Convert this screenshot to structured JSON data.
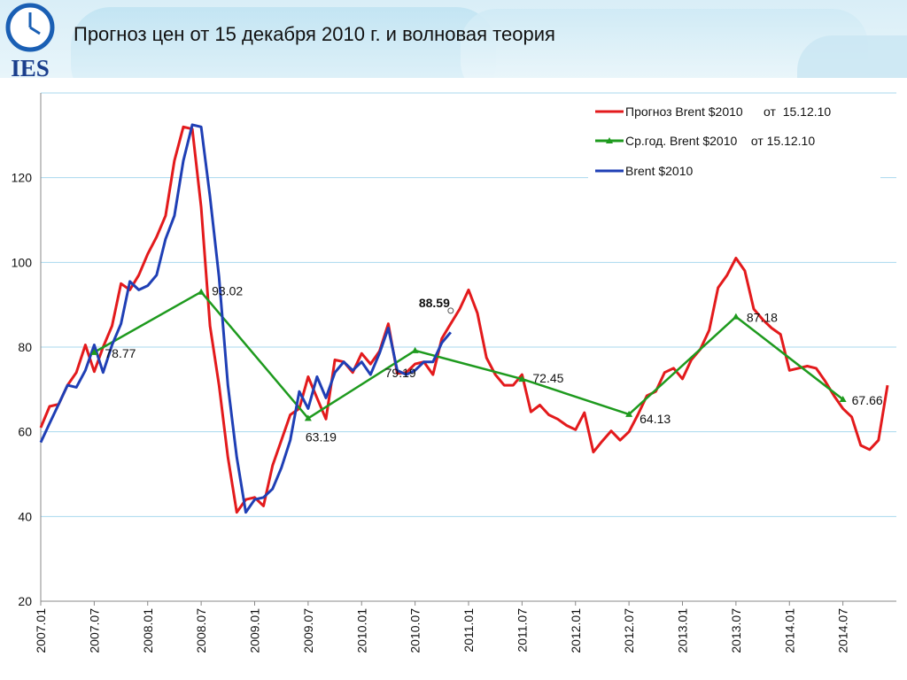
{
  "slide": {
    "title": "Прогноз цен от 15 декабря 2010 г. и волновая теория",
    "logo_text": "IES"
  },
  "colors": {
    "forecast": "#e31a1c",
    "annual": "#1e9a1e",
    "brent": "#1f3fb5",
    "grid": "#a8d8ee"
  },
  "chart_data": {
    "type": "line",
    "title": "",
    "xlabel": "",
    "ylabel": "",
    "ylim": [
      20,
      140
    ],
    "yticks": [
      20,
      40,
      60,
      80,
      100,
      120
    ],
    "xlim": [
      2007.0,
      2015.0
    ],
    "xticks": [
      {
        "x": 2007.0,
        "label": "2007.01"
      },
      {
        "x": 2007.5,
        "label": "2007.07"
      },
      {
        "x": 2008.0,
        "label": "2008.01"
      },
      {
        "x": 2008.5,
        "label": "2008.07"
      },
      {
        "x": 2009.0,
        "label": "2009.01"
      },
      {
        "x": 2009.5,
        "label": "2009.07"
      },
      {
        "x": 2010.0,
        "label": "2010.01"
      },
      {
        "x": 2010.5,
        "label": "2010.07"
      },
      {
        "x": 2011.0,
        "label": "2011.01"
      },
      {
        "x": 2011.5,
        "label": "2011.07"
      },
      {
        "x": 2012.0,
        "label": "2012.01"
      },
      {
        "x": 2012.5,
        "label": "2012.07"
      },
      {
        "x": 2013.0,
        "label": "2013.01"
      },
      {
        "x": 2013.5,
        "label": "2013.07"
      },
      {
        "x": 2014.0,
        "label": "2014.01"
      },
      {
        "x": 2014.5,
        "label": "2014.07"
      }
    ],
    "grid": true,
    "legend_position": "top-right",
    "series": [
      {
        "name": "Прогноз Brent $2010      от  15.12.10",
        "color_key": "forecast",
        "x": [
          2007.0,
          2007.083,
          2007.167,
          2007.25,
          2007.333,
          2007.417,
          2007.5,
          2007.583,
          2007.667,
          2007.75,
          2007.833,
          2007.917,
          2008.0,
          2008.083,
          2008.167,
          2008.25,
          2008.333,
          2008.417,
          2008.5,
          2008.583,
          2008.667,
          2008.75,
          2008.833,
          2008.917,
          2009.0,
          2009.083,
          2009.167,
          2009.25,
          2009.333,
          2009.417,
          2009.5,
          2009.583,
          2009.667,
          2009.75,
          2009.833,
          2009.917,
          2010.0,
          2010.083,
          2010.167,
          2010.25,
          2010.333,
          2010.417,
          2010.5,
          2010.583,
          2010.667,
          2010.75,
          2010.833,
          2010.917,
          2011.0,
          2011.083,
          2011.167,
          2011.25,
          2011.333,
          2011.417,
          2011.5,
          2011.583,
          2011.667,
          2011.75,
          2011.833,
          2011.917,
          2012.0,
          2012.083,
          2012.167,
          2012.25,
          2012.333,
          2012.417,
          2012.5,
          2012.583,
          2012.667,
          2012.75,
          2012.833,
          2012.917,
          2013.0,
          2013.083,
          2013.167,
          2013.25,
          2013.333,
          2013.417,
          2013.5,
          2013.583,
          2013.667,
          2013.75,
          2013.833,
          2013.917,
          2014.0,
          2014.083,
          2014.167,
          2014.25,
          2014.333,
          2014.417,
          2014.5,
          2014.583,
          2014.667,
          2014.75,
          2014.833,
          2014.917
        ],
        "values": [
          61,
          66,
          66.5,
          71,
          74,
          80.5,
          74.2,
          80,
          85,
          95,
          93.5,
          97,
          102,
          106,
          111,
          124,
          132,
          131.5,
          113,
          85,
          71,
          54,
          41,
          44,
          44.5,
          42.5,
          52,
          58,
          64,
          65.5,
          73,
          68,
          63,
          77,
          76.5,
          74,
          78.5,
          76,
          79,
          85.5,
          73.8,
          74,
          76,
          76.5,
          73.5,
          82,
          85.5,
          89,
          93.5,
          88,
          77.5,
          73.5,
          71,
          71,
          73.5,
          64.7,
          66.3,
          64,
          63,
          61.5,
          60.5,
          64.5,
          55.2,
          57.8,
          60.2,
          58,
          60,
          64,
          68.5,
          69.5,
          74,
          75,
          72.5,
          77,
          79.5,
          84,
          94,
          97,
          101,
          98,
          89,
          86.5,
          84.5,
          83,
          74.5,
          75,
          75.5,
          75,
          72,
          68.5,
          65.5,
          63.5,
          56.8,
          55.8,
          58,
          71
        ]
      },
      {
        "name": "Ср.год. Brent $2010    от 15.12.10",
        "color_key": "annual",
        "x": [
          2007.5,
          2008.5,
          2009.5,
          2010.5,
          2011.5,
          2012.5,
          2013.5,
          2014.5
        ],
        "values": [
          78.77,
          93.02,
          63.19,
          79.19,
          72.45,
          64.13,
          87.18,
          67.66
        ],
        "labels": [
          "78.77",
          "93.02",
          "63.19",
          "79.19",
          "72.45",
          "64.13",
          "87.18",
          "67.66"
        ]
      },
      {
        "name": "Brent $2010",
        "color_key": "brent",
        "x": [
          2007.0,
          2007.083,
          2007.167,
          2007.25,
          2007.333,
          2007.417,
          2007.5,
          2007.583,
          2007.667,
          2007.75,
          2007.833,
          2007.917,
          2008.0,
          2008.083,
          2008.167,
          2008.25,
          2008.333,
          2008.417,
          2008.5,
          2008.583,
          2008.667,
          2008.75,
          2008.833,
          2008.917,
          2009.0,
          2009.083,
          2009.167,
          2009.25,
          2009.333,
          2009.417,
          2009.5,
          2009.583,
          2009.667,
          2009.75,
          2009.833,
          2009.917,
          2010.0,
          2010.083,
          2010.167,
          2010.25,
          2010.333,
          2010.417,
          2010.5,
          2010.583,
          2010.667,
          2010.75,
          2010.833
        ],
        "values": [
          57.5,
          62,
          66.5,
          71,
          70.5,
          74.5,
          80.5,
          74,
          80.5,
          85.5,
          95.5,
          93.5,
          94.5,
          97,
          105.5,
          111,
          124,
          132.5,
          132,
          115.5,
          96.5,
          71,
          54,
          41,
          44,
          44.5,
          46.5,
          51.5,
          58,
          69.5,
          65.5,
          73,
          68,
          74,
          76.5,
          74.5,
          76.5,
          73.5,
          78.5,
          84.5,
          74.5,
          73.5,
          74.5,
          76.5,
          76.5,
          81,
          83.5
        ]
      }
    ],
    "annotations": [
      {
        "x": 2010.833,
        "y": 88.59,
        "label": "88.59",
        "bold": true
      }
    ]
  }
}
